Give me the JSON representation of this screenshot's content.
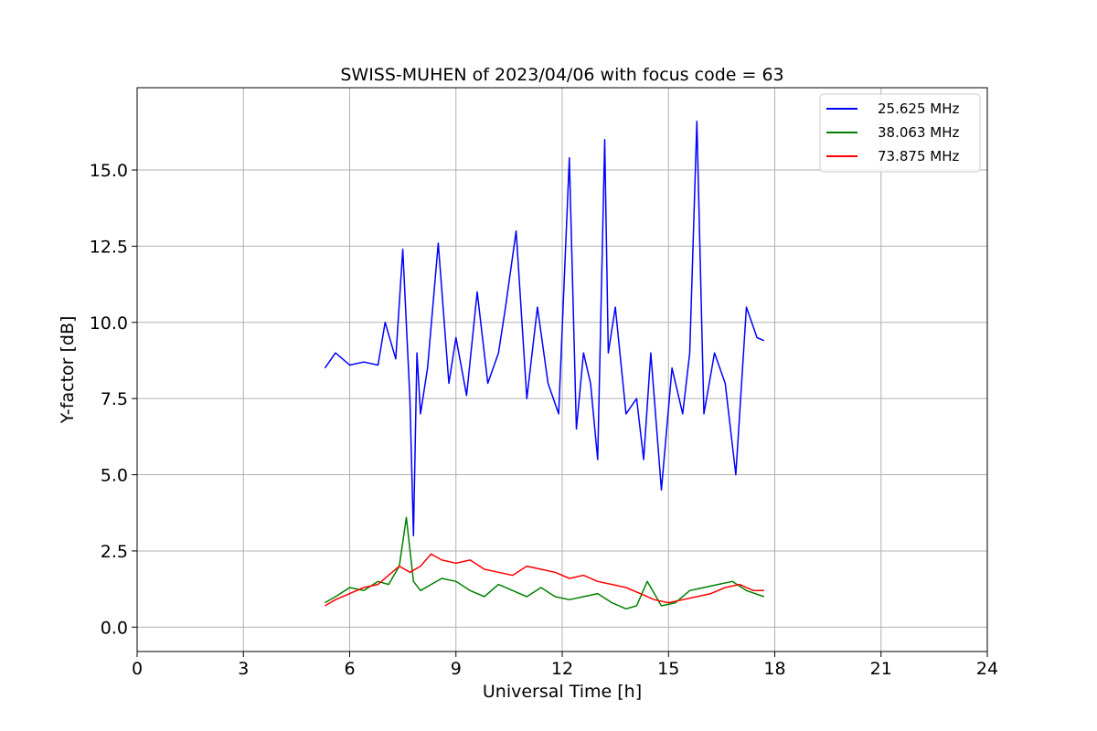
{
  "chart_data": {
    "type": "line",
    "title": "SWISS-MUHEN of 2023/04/06 with focus code = 63",
    "xlabel": "Universal Time [h]",
    "ylabel": "Y-factor [dB]",
    "xlim": [
      0,
      24
    ],
    "ylim": [
      -0.8,
      17.7
    ],
    "xticks": [
      0,
      3,
      6,
      9,
      12,
      15,
      18,
      21,
      24
    ],
    "xtick_labels": [
      "0",
      "3",
      "6",
      "9",
      "12",
      "15",
      "18",
      "21",
      "24"
    ],
    "yticks": [
      0,
      2.5,
      5,
      7.5,
      10,
      12.5,
      15
    ],
    "ytick_labels": [
      "0.0",
      "2.5",
      "5.0",
      "7.5",
      "10.0",
      "12.5",
      "15.0"
    ],
    "grid": true,
    "legend_position": "top-right",
    "series": [
      {
        "name": "25.625 MHz",
        "color": "#0000ff",
        "x": [
          5.3,
          5.6,
          6.0,
          6.4,
          6.8,
          7.0,
          7.3,
          7.5,
          7.7,
          7.8,
          7.9,
          8.0,
          8.2,
          8.5,
          8.8,
          9.0,
          9.3,
          9.6,
          9.9,
          10.2,
          10.4,
          10.7,
          11.0,
          11.3,
          11.6,
          11.9,
          12.2,
          12.4,
          12.6,
          12.8,
          13.0,
          13.2,
          13.3,
          13.5,
          13.8,
          14.1,
          14.3,
          14.5,
          14.8,
          15.1,
          15.4,
          15.6,
          15.8,
          16.0,
          16.3,
          16.6,
          16.9,
          17.2,
          17.5,
          17.7
        ],
        "y": [
          8.5,
          9.0,
          8.6,
          8.7,
          8.6,
          10.0,
          8.8,
          12.4,
          7.5,
          3.0,
          9.0,
          7.0,
          8.5,
          12.6,
          8.0,
          9.5,
          7.6,
          11.0,
          8.0,
          9.0,
          10.5,
          13.0,
          7.5,
          10.5,
          8.0,
          7.0,
          15.4,
          6.5,
          9.0,
          8.0,
          5.5,
          16.0,
          9.0,
          10.5,
          7.0,
          7.5,
          5.5,
          9.0,
          4.5,
          8.5,
          7.0,
          9.0,
          16.6,
          7.0,
          9.0,
          8.0,
          5.0,
          10.5,
          9.5,
          9.4
        ]
      },
      {
        "name": "38.063 MHz",
        "color": "#008000",
        "x": [
          5.3,
          5.6,
          6.0,
          6.4,
          6.8,
          7.1,
          7.4,
          7.6,
          7.8,
          8.0,
          8.3,
          8.6,
          9.0,
          9.4,
          9.8,
          10.2,
          10.6,
          11.0,
          11.4,
          11.8,
          12.2,
          12.6,
          13.0,
          13.4,
          13.8,
          14.1,
          14.4,
          14.8,
          15.2,
          15.6,
          16.0,
          16.4,
          16.8,
          17.2,
          17.7
        ],
        "y": [
          0.8,
          1.0,
          1.3,
          1.2,
          1.5,
          1.4,
          2.0,
          3.6,
          1.5,
          1.2,
          1.4,
          1.6,
          1.5,
          1.2,
          1.0,
          1.4,
          1.2,
          1.0,
          1.3,
          1.0,
          0.9,
          1.0,
          1.1,
          0.8,
          0.6,
          0.7,
          1.5,
          0.7,
          0.8,
          1.2,
          1.3,
          1.4,
          1.5,
          1.2,
          1.0
        ]
      },
      {
        "name": "73.875 MHz",
        "color": "#ff0000",
        "x": [
          5.3,
          5.6,
          6.0,
          6.4,
          6.8,
          7.1,
          7.4,
          7.7,
          8.0,
          8.3,
          8.6,
          9.0,
          9.4,
          9.8,
          10.2,
          10.6,
          11.0,
          11.4,
          11.8,
          12.2,
          12.6,
          13.0,
          13.4,
          13.8,
          14.2,
          14.6,
          15.0,
          15.4,
          15.8,
          16.2,
          16.6,
          17.0,
          17.4,
          17.7
        ],
        "y": [
          0.7,
          0.9,
          1.1,
          1.3,
          1.4,
          1.7,
          2.0,
          1.8,
          2.0,
          2.4,
          2.2,
          2.1,
          2.2,
          1.9,
          1.8,
          1.7,
          2.0,
          1.9,
          1.8,
          1.6,
          1.7,
          1.5,
          1.4,
          1.3,
          1.1,
          0.9,
          0.8,
          0.9,
          1.0,
          1.1,
          1.3,
          1.4,
          1.2,
          1.2
        ]
      }
    ]
  }
}
